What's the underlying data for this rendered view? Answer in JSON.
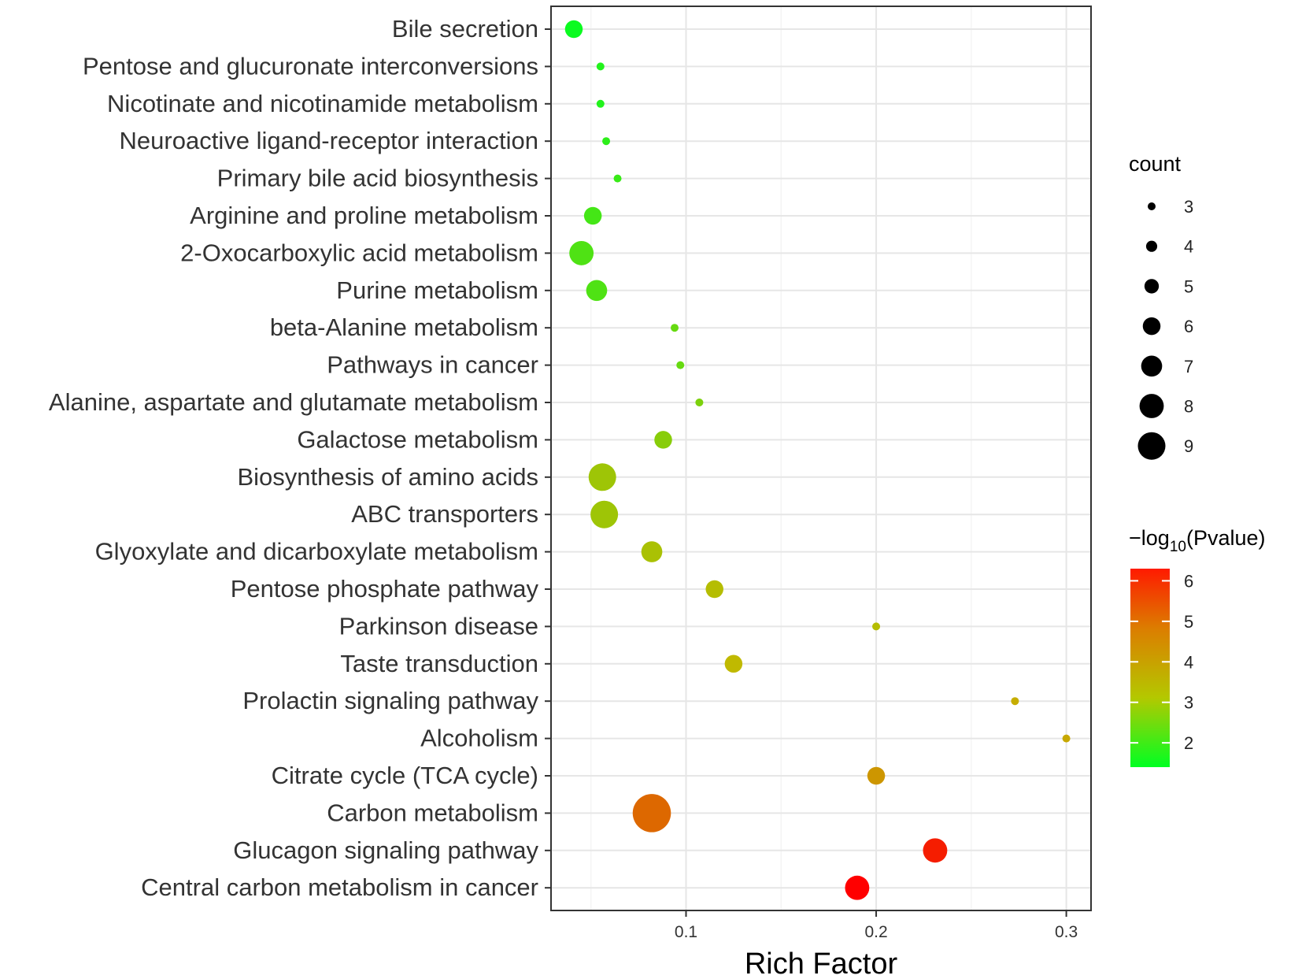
{
  "chart_data": {
    "type": "scatter",
    "xlabel": "Rich Factor",
    "xlim": [
      0.029,
      0.313
    ],
    "x_ticks": [
      0.1,
      0.2,
      0.3
    ],
    "x_tick_labels": [
      "0.1",
      "0.2",
      "0.3"
    ],
    "grid": true,
    "points": [
      {
        "pathway": "Bile secretion",
        "rich_factor": 0.041,
        "count": 6,
        "neg_log10_p": 1.5
      },
      {
        "pathway": "Pentose and glucuronate interconversions",
        "rich_factor": 0.055,
        "count": 3,
        "neg_log10_p": 1.7
      },
      {
        "pathway": "Nicotinate and nicotinamide metabolism",
        "rich_factor": 0.055,
        "count": 3,
        "neg_log10_p": 1.7
      },
      {
        "pathway": "Neuroactive ligand-receptor interaction",
        "rich_factor": 0.058,
        "count": 3,
        "neg_log10_p": 1.8
      },
      {
        "pathway": "Primary bile acid biosynthesis",
        "rich_factor": 0.064,
        "count": 3,
        "neg_log10_p": 1.9
      },
      {
        "pathway": "Arginine and proline metabolism",
        "rich_factor": 0.051,
        "count": 6,
        "neg_log10_p": 2.0
      },
      {
        "pathway": "2-Oxocarboxylic acid metabolism",
        "rich_factor": 0.045,
        "count": 8,
        "neg_log10_p": 2.1
      },
      {
        "pathway": "Purine metabolism",
        "rich_factor": 0.053,
        "count": 7,
        "neg_log10_p": 2.1
      },
      {
        "pathway": "beta-Alanine metabolism",
        "rich_factor": 0.094,
        "count": 3,
        "neg_log10_p": 2.3
      },
      {
        "pathway": "Pathways in cancer",
        "rich_factor": 0.097,
        "count": 3,
        "neg_log10_p": 2.3
      },
      {
        "pathway": "Alanine, aspartate and glutamate metabolism",
        "rich_factor": 0.107,
        "count": 3,
        "neg_log10_p": 2.5
      },
      {
        "pathway": "Galactose metabolism",
        "rich_factor": 0.088,
        "count": 6,
        "neg_log10_p": 2.6
      },
      {
        "pathway": "Biosynthesis of amino acids",
        "rich_factor": 0.056,
        "count": 9,
        "neg_log10_p": 2.8
      },
      {
        "pathway": "ABC transporters",
        "rich_factor": 0.057,
        "count": 9,
        "neg_log10_p": 2.8
      },
      {
        "pathway": "Glyoxylate and dicarboxylate metabolism",
        "rich_factor": 0.082,
        "count": 7,
        "neg_log10_p": 2.9
      },
      {
        "pathway": "Pentose phosphate pathway",
        "rich_factor": 0.115,
        "count": 6,
        "neg_log10_p": 3.0
      },
      {
        "pathway": "Parkinson disease",
        "rich_factor": 0.2,
        "count": 3,
        "neg_log10_p": 3.0
      },
      {
        "pathway": "Taste transduction",
        "rich_factor": 0.125,
        "count": 6,
        "neg_log10_p": 3.1
      },
      {
        "pathway": "Prolactin signaling pathway",
        "rich_factor": 0.273,
        "count": 3,
        "neg_log10_p": 3.3
      },
      {
        "pathway": "Alcoholism",
        "rich_factor": 0.3,
        "count": 3,
        "neg_log10_p": 3.4
      },
      {
        "pathway": "Citrate cycle (TCA cycle)",
        "rich_factor": 0.2,
        "count": 6,
        "neg_log10_p": 3.7
      },
      {
        "pathway": "Carbon metabolism",
        "rich_factor": 0.082,
        "count": 11,
        "neg_log10_p": 4.5
      },
      {
        "pathway": "Glucagon signaling pathway",
        "rich_factor": 0.231,
        "count": 8,
        "neg_log10_p": 5.8
      },
      {
        "pathway": "Central carbon metabolism in cancer",
        "rich_factor": 0.19,
        "count": 8,
        "neg_log10_p": 6.3
      }
    ],
    "size_legend": {
      "title": "count",
      "values": [
        3,
        4,
        5,
        6,
        7,
        8,
        9
      ],
      "labels": [
        "3",
        "4",
        "5",
        "6",
        "7",
        "8",
        "9"
      ]
    },
    "color_legend": {
      "title_main": "−log",
      "title_sub": "10",
      "title_tail": "(Pvalue)",
      "min": 1.4,
      "max": 6.3,
      "tick_values": [
        6,
        5,
        4,
        3,
        2
      ],
      "tick_labels": [
        "6",
        "5",
        "4",
        "3",
        "2"
      ],
      "colors": {
        "low": "#00ff22",
        "mid": "#c2b800",
        "high": "#ff0000"
      }
    }
  }
}
